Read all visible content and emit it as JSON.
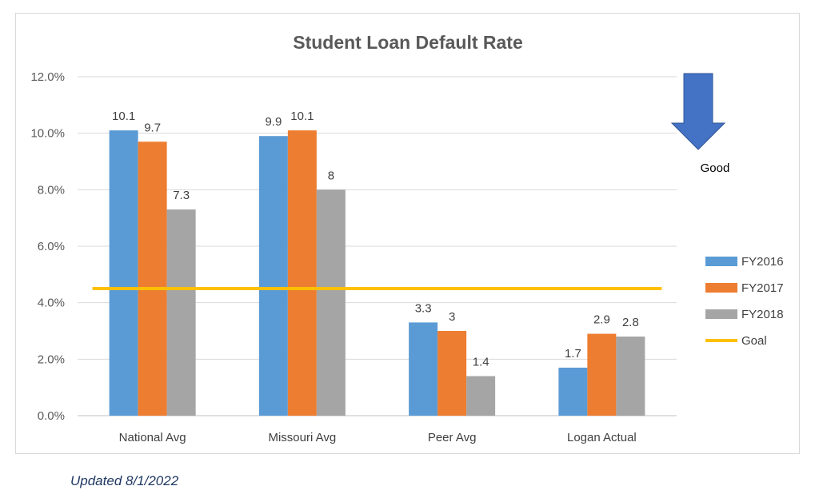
{
  "chart_data": {
    "type": "bar",
    "title": "Student Loan Default Rate",
    "xlabel": "",
    "ylabel": "",
    "categories": [
      "National Avg",
      "Missouri Avg",
      "Peer Avg",
      "Logan Actual"
    ],
    "series": [
      {
        "name": "FY2016",
        "values": [
          10.1,
          9.9,
          3.3,
          1.7
        ],
        "color": "#5b9bd5",
        "labels": [
          "10.1",
          "9.9",
          "3.3",
          "1.7"
        ]
      },
      {
        "name": "FY2017",
        "values": [
          9.7,
          10.1,
          3,
          2.9
        ],
        "color": "#ed7d31",
        "labels": [
          "9.7",
          "10.1",
          "3",
          "2.9"
        ]
      },
      {
        "name": "FY2018",
        "values": [
          7.3,
          8,
          1.4,
          2.8
        ],
        "color": "#a5a5a5",
        "labels": [
          "7.3",
          "8",
          "1.4",
          "2.8"
        ]
      }
    ],
    "goal": {
      "name": "Goal",
      "value": 4.5,
      "color": "#ffc000"
    },
    "ylim": [
      0,
      12
    ],
    "y_ticks": [
      0,
      2,
      4,
      6,
      8,
      10,
      12
    ],
    "y_tick_labels": [
      "0.0%",
      "2.0%",
      "4.0%",
      "6.0%",
      "8.0%",
      "10.0%",
      "12.0%"
    ],
    "grid": true,
    "legend_position": "right",
    "annotation": {
      "label": "Good",
      "icon": "down-arrow-icon",
      "color": "#4472c4"
    }
  },
  "footnote": "Updated 8/1/2022"
}
